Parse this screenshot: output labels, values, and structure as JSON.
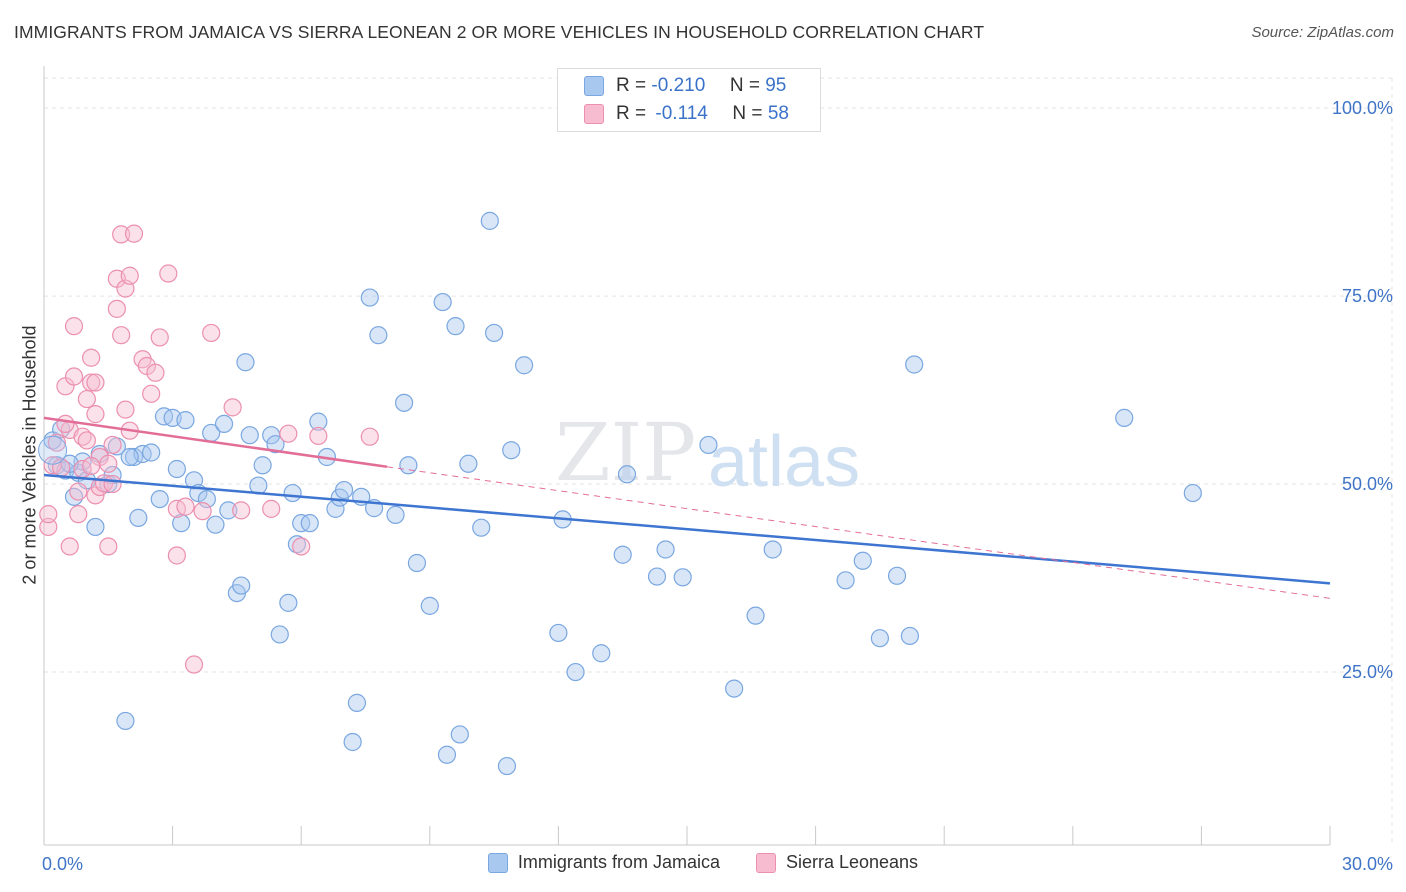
{
  "title": "IMMIGRANTS FROM JAMAICA VS SIERRA LEONEAN 2 OR MORE VEHICLES IN HOUSEHOLD CORRELATION CHART",
  "source": "Source: ZipAtlas.com",
  "watermark": {
    "zip": "ZIP",
    "atlas": "atlas"
  },
  "stats": [
    {
      "r_label": "R =",
      "r_value": "-0.210",
      "n_label": "N =",
      "n_value": "95",
      "color": "#a9c8f0",
      "border": "#7aa7e0"
    },
    {
      "r_label": "R =",
      "r_value": "-0.114",
      "n_label": "N =",
      "n_value": "58",
      "color": "#f7bcd0",
      "border": "#ec8fb0"
    }
  ],
  "legend": [
    {
      "label": "Immigrants from Jamaica",
      "color": "#a9c8f0",
      "border": "#7aa7e0"
    },
    {
      "label": "Sierra Leoneans",
      "color": "#f7bcd0",
      "border": "#ec8fb0"
    }
  ],
  "chart_data": {
    "type": "scatter",
    "title": "IMMIGRANTS FROM JAMAICA VS SIERRA LEONEAN 2 OR MORE VEHICLES IN HOUSEHOLD CORRELATION CHART",
    "xlabel": "",
    "ylabel": "2 or more Vehicles in Household",
    "xlim": [
      0,
      30
    ],
    "ylim": [
      2,
      104
    ],
    "x_ticks": [
      {
        "value": 0,
        "label": "0.0%"
      },
      {
        "value": 30,
        "label": "30.0%"
      }
    ],
    "y_ticks": [
      {
        "value": 25,
        "label": "25.0%"
      },
      {
        "value": 50,
        "label": "50.0%"
      },
      {
        "value": 75,
        "label": "75.0%"
      },
      {
        "value": 100,
        "label": "100.0%"
      }
    ],
    "grid": true,
    "series": [
      {
        "name": "Immigrants from Jamaica",
        "color": "#7aa7e0",
        "fill": "rgba(169,200,240,0.45)",
        "trend": {
          "x": [
            0,
            30
          ],
          "y": [
            51.2,
            36.8
          ],
          "color": "#3d75d1",
          "dashed_to": null
        },
        "points": [
          [
            0.2,
            55.8
          ],
          [
            0.3,
            52.5
          ],
          [
            0.5,
            51.8
          ],
          [
            0.7,
            48.3
          ],
          [
            0.8,
            51.5
          ],
          [
            0.9,
            53.0
          ],
          [
            1.0,
            50.5
          ],
          [
            1.2,
            44.3
          ],
          [
            1.3,
            54.0
          ],
          [
            1.5,
            50.0
          ],
          [
            1.6,
            51.2
          ],
          [
            1.7,
            55.0
          ],
          [
            1.9,
            18.5
          ],
          [
            2.1,
            53.6
          ],
          [
            2.2,
            45.5
          ],
          [
            2.3,
            54.0
          ],
          [
            2.5,
            54.2
          ],
          [
            2.7,
            48.0
          ],
          [
            2.8,
            59.0
          ],
          [
            3.0,
            58.8
          ],
          [
            3.1,
            52.0
          ],
          [
            3.2,
            44.8
          ],
          [
            3.3,
            58.5
          ],
          [
            3.5,
            50.5
          ],
          [
            3.6,
            48.8
          ],
          [
            3.8,
            48.0
          ],
          [
            3.9,
            56.8
          ],
          [
            4.0,
            44.6
          ],
          [
            4.2,
            58.0
          ],
          [
            4.3,
            46.5
          ],
          [
            4.5,
            35.5
          ],
          [
            4.6,
            36.5
          ],
          [
            4.7,
            66.2
          ],
          [
            4.8,
            56.5
          ],
          [
            5.0,
            49.8
          ],
          [
            5.1,
            52.5
          ],
          [
            5.3,
            56.5
          ],
          [
            5.4,
            55.3
          ],
          [
            5.5,
            30.0
          ],
          [
            5.7,
            34.2
          ],
          [
            5.8,
            48.8
          ],
          [
            5.9,
            42.0
          ],
          [
            6.0,
            44.8
          ],
          [
            6.2,
            44.8
          ],
          [
            6.4,
            58.3
          ],
          [
            6.6,
            53.6
          ],
          [
            6.8,
            46.7
          ],
          [
            6.9,
            48.2
          ],
          [
            7.0,
            49.2
          ],
          [
            7.2,
            15.7
          ],
          [
            7.3,
            20.9
          ],
          [
            7.4,
            48.3
          ],
          [
            7.6,
            74.8
          ],
          [
            7.7,
            46.8
          ],
          [
            7.8,
            69.8
          ],
          [
            8.2,
            45.9
          ],
          [
            8.4,
            60.8
          ],
          [
            8.5,
            52.5
          ],
          [
            8.7,
            39.5
          ],
          [
            9.0,
            33.8
          ],
          [
            9.3,
            74.2
          ],
          [
            9.4,
            14.0
          ],
          [
            9.6,
            71.0
          ],
          [
            9.7,
            16.7
          ],
          [
            9.9,
            52.7
          ],
          [
            10.2,
            44.2
          ],
          [
            10.4,
            85.0
          ],
          [
            10.5,
            70.1
          ],
          [
            10.8,
            12.5
          ],
          [
            10.9,
            54.5
          ],
          [
            11.2,
            65.8
          ],
          [
            12.0,
            30.2
          ],
          [
            12.1,
            45.3
          ],
          [
            12.4,
            25.0
          ],
          [
            13.0,
            27.5
          ],
          [
            13.5,
            40.6
          ],
          [
            13.6,
            51.3
          ],
          [
            14.3,
            37.7
          ],
          [
            14.5,
            41.3
          ],
          [
            14.9,
            37.6
          ],
          [
            15.5,
            55.2
          ],
          [
            16.1,
            22.8
          ],
          [
            16.6,
            32.5
          ],
          [
            17.0,
            41.3
          ],
          [
            18.7,
            37.2
          ],
          [
            19.1,
            39.8
          ],
          [
            19.5,
            29.5
          ],
          [
            19.9,
            37.8
          ],
          [
            20.2,
            29.8
          ],
          [
            20.3,
            65.9
          ],
          [
            25.2,
            58.8
          ],
          [
            26.8,
            48.8
          ],
          [
            0.4,
            57.3
          ],
          [
            0.6,
            52.7
          ],
          [
            2.0,
            53.6
          ]
        ]
      },
      {
        "name": "Sierra Leoneans",
        "color": "#ec8fb0",
        "fill": "rgba(247,188,208,0.45)",
        "trend": {
          "x": [
            0,
            8.0
          ],
          "y": [
            58.8,
            52.3
          ],
          "color": "#e26e98",
          "dash_x": [
            8.0,
            30
          ],
          "dash_y": [
            52.3,
            34.8
          ]
        },
        "points": [
          [
            0.1,
            44.3
          ],
          [
            0.1,
            46.0
          ],
          [
            0.2,
            52.5
          ],
          [
            0.3,
            55.5
          ],
          [
            0.4,
            52.2
          ],
          [
            0.5,
            63.0
          ],
          [
            0.6,
            57.2
          ],
          [
            0.6,
            41.7
          ],
          [
            0.7,
            64.3
          ],
          [
            0.7,
            71.0
          ],
          [
            0.8,
            46.0
          ],
          [
            0.8,
            49.0
          ],
          [
            0.9,
            52.0
          ],
          [
            0.9,
            56.3
          ],
          [
            1.0,
            55.8
          ],
          [
            1.0,
            61.3
          ],
          [
            1.1,
            63.5
          ],
          [
            1.1,
            66.8
          ],
          [
            1.2,
            59.3
          ],
          [
            1.2,
            63.5
          ],
          [
            1.2,
            48.5
          ],
          [
            1.3,
            53.6
          ],
          [
            1.3,
            49.6
          ],
          [
            1.4,
            50.1
          ],
          [
            1.5,
            41.7
          ],
          [
            1.5,
            52.7
          ],
          [
            1.6,
            50.0
          ],
          [
            1.6,
            55.2
          ],
          [
            1.7,
            73.3
          ],
          [
            1.7,
            77.3
          ],
          [
            1.8,
            69.8
          ],
          [
            1.8,
            83.2
          ],
          [
            1.9,
            76.0
          ],
          [
            2.0,
            77.7
          ],
          [
            2.0,
            57.1
          ],
          [
            2.1,
            83.3
          ],
          [
            2.3,
            66.6
          ],
          [
            2.4,
            65.7
          ],
          [
            2.5,
            62.0
          ],
          [
            2.6,
            64.8
          ],
          [
            2.7,
            69.5
          ],
          [
            2.9,
            78.0
          ],
          [
            3.1,
            46.7
          ],
          [
            3.1,
            40.5
          ],
          [
            3.3,
            47.0
          ],
          [
            3.5,
            26.0
          ],
          [
            3.7,
            46.4
          ],
          [
            3.9,
            70.1
          ],
          [
            4.4,
            60.2
          ],
          [
            4.6,
            46.5
          ],
          [
            5.3,
            46.7
          ],
          [
            5.7,
            56.7
          ],
          [
            6.0,
            41.7
          ],
          [
            6.4,
            56.4
          ],
          [
            7.6,
            56.3
          ],
          [
            0.5,
            58.0
          ],
          [
            1.9,
            59.9
          ],
          [
            1.1,
            52.4
          ]
        ]
      }
    ]
  }
}
